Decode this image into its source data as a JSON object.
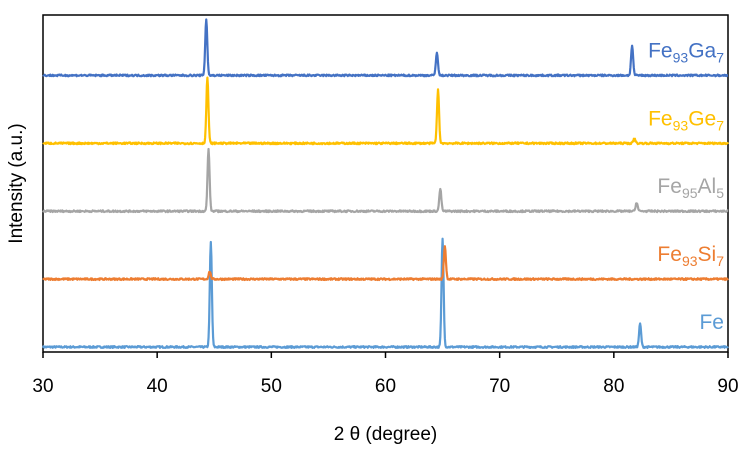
{
  "chart_data": {
    "type": "line",
    "title": "",
    "xlabel": "2 θ (degree)",
    "ylabel": "Intensity (a.u.)",
    "xlim": [
      30,
      90
    ],
    "x_ticks": [
      30,
      40,
      50,
      60,
      70,
      80,
      90
    ],
    "y_ticks_shown": false,
    "grid": false,
    "legend": "inline labels at right end of each trace",
    "series": [
      {
        "name": "Fe",
        "label_base": "Fe",
        "label_sub": "",
        "label_tail": "",
        "color": "#5B9BD5",
        "baseline": 0,
        "peaks": [
          {
            "x": 44.7,
            "height": 10.8
          },
          {
            "x": 65.0,
            "height": 11.2
          },
          {
            "x": 82.3,
            "height": 2.4
          }
        ]
      },
      {
        "name": "Fe93Si7",
        "label_base": "Fe",
        "label_sub": "93",
        "label_tail": "Si",
        "label_sub2": "7",
        "color": "#ED7D31",
        "baseline": 7,
        "peaks": [
          {
            "x": 44.6,
            "height": 0.8
          },
          {
            "x": 65.2,
            "height": 3.4
          }
        ]
      },
      {
        "name": "Fe95Al5",
        "label_base": "Fe",
        "label_sub": "95",
        "label_tail": "Al",
        "label_sub2": "5",
        "color": "#A5A5A5",
        "baseline": 14,
        "peaks": [
          {
            "x": 44.5,
            "height": 6.4
          },
          {
            "x": 64.8,
            "height": 2.3
          },
          {
            "x": 82.0,
            "height": 0.9
          }
        ]
      },
      {
        "name": "Fe93Ge7",
        "label_base": "Fe",
        "label_sub": "93",
        "label_tail": "Ge",
        "label_sub2": "7",
        "color": "#FFC000",
        "baseline": 21,
        "peaks": [
          {
            "x": 44.4,
            "height": 6.8
          },
          {
            "x": 64.6,
            "height": 5.5
          },
          {
            "x": 81.8,
            "height": 0.5
          }
        ]
      },
      {
        "name": "Fe93Ga7",
        "label_base": "Fe",
        "label_sub": "93",
        "label_tail": "Ga",
        "label_sub2": "7",
        "color": "#4472C4",
        "baseline": 28,
        "peaks": [
          {
            "x": 44.3,
            "height": 5.8
          },
          {
            "x": 64.5,
            "height": 2.4
          },
          {
            "x": 81.6,
            "height": 3.1
          }
        ]
      }
    ]
  }
}
